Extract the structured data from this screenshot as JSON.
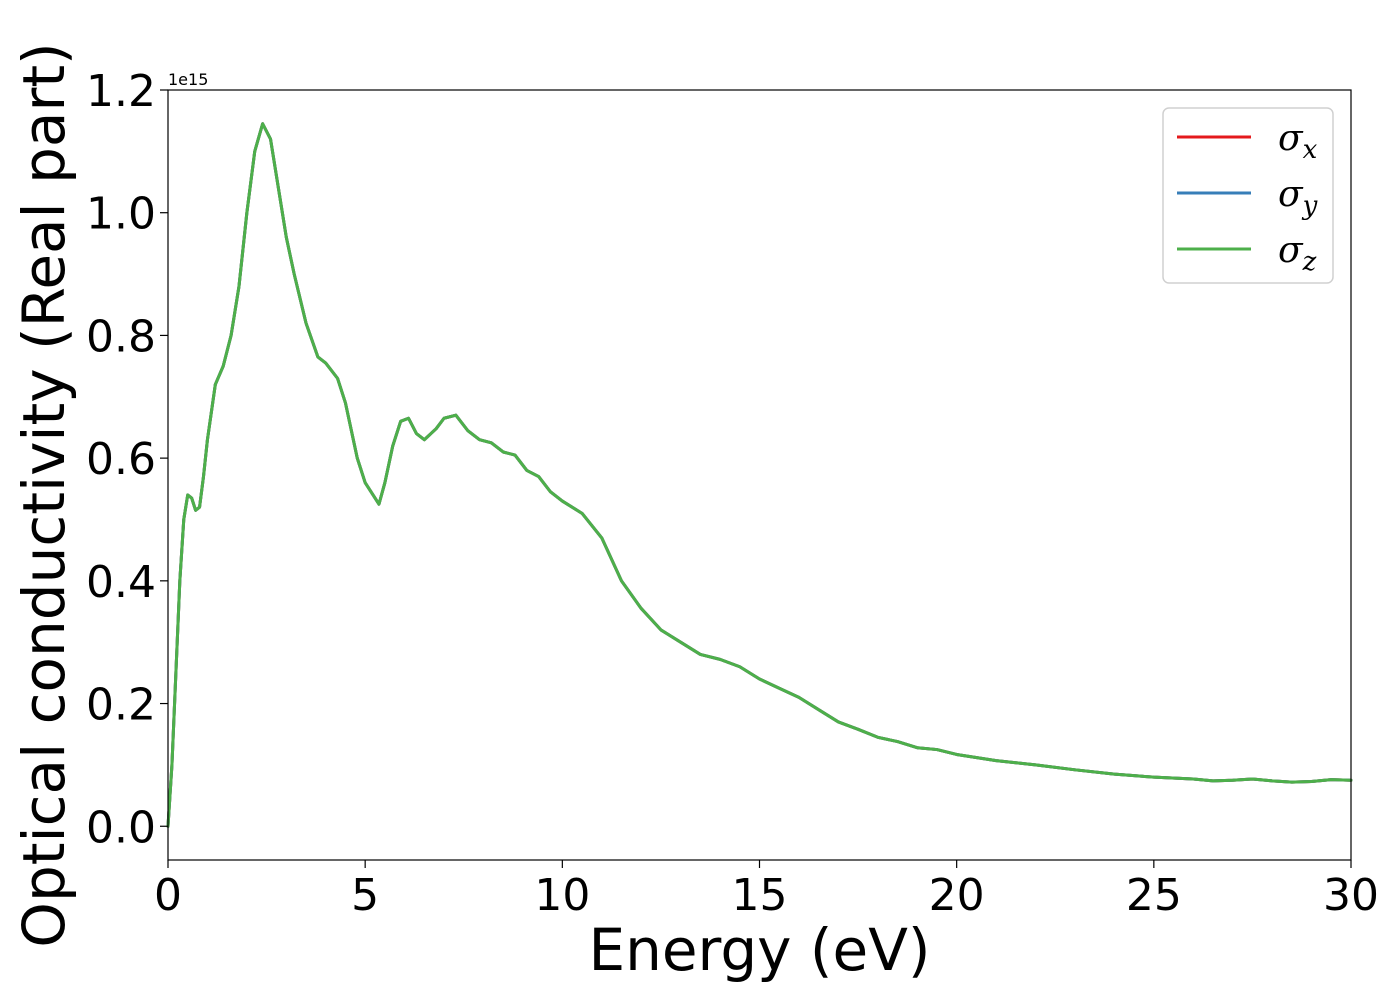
{
  "chart_data": {
    "type": "line",
    "xlabel": "Energy (eV)",
    "ylabel": "Optical conductivity (Real part)",
    "y_offset_text": "1e15",
    "xlim": [
      0,
      30
    ],
    "ylim": [
      -0.055,
      1.2
    ],
    "y_multiplier": 1000000000000000.0,
    "xticks": [
      0,
      5,
      10,
      15,
      20,
      25,
      30
    ],
    "xtick_labels": [
      "0",
      "5",
      "10",
      "15",
      "20",
      "25",
      "30"
    ],
    "yticks": [
      0.0,
      0.2,
      0.4,
      0.6,
      0.8,
      1.0,
      1.2
    ],
    "ytick_labels": [
      "0.0",
      "0.2",
      "0.4",
      "0.6",
      "0.8",
      "1.0",
      "1.2"
    ],
    "grid": false,
    "legend_position": "top-right",
    "x": [
      0,
      0.1,
      0.2,
      0.3,
      0.4,
      0.5,
      0.6,
      0.7,
      0.8,
      0.9,
      1.0,
      1.2,
      1.4,
      1.6,
      1.8,
      2.0,
      2.2,
      2.4,
      2.6,
      2.8,
      3.0,
      3.2,
      3.5,
      3.8,
      4.0,
      4.3,
      4.5,
      4.8,
      5.0,
      5.2,
      5.35,
      5.5,
      5.7,
      5.9,
      6.1,
      6.3,
      6.5,
      6.8,
      7.0,
      7.3,
      7.6,
      7.9,
      8.2,
      8.5,
      8.8,
      9.1,
      9.4,
      9.7,
      10.0,
      10.5,
      11.0,
      11.5,
      12.0,
      12.5,
      13.0,
      13.5,
      14.0,
      14.5,
      15.0,
      15.5,
      16.0,
      16.5,
      17.0,
      17.5,
      18.0,
      18.5,
      19.0,
      19.5,
      20.0,
      21.0,
      22.0,
      23.0,
      24.0,
      25.0,
      26.0,
      26.5,
      27.0,
      27.5,
      28.0,
      28.5,
      29.0,
      29.5,
      30.0
    ],
    "series": [
      {
        "name": "σx",
        "label_base": "σ",
        "label_sub": "x",
        "color": "#e41a1c",
        "values": [
          0.0,
          0.1,
          0.25,
          0.4,
          0.5,
          0.54,
          0.535,
          0.515,
          0.52,
          0.57,
          0.63,
          0.72,
          0.75,
          0.8,
          0.88,
          1.0,
          1.1,
          1.145,
          1.12,
          1.04,
          0.96,
          0.9,
          0.82,
          0.765,
          0.755,
          0.73,
          0.69,
          0.6,
          0.56,
          0.54,
          0.525,
          0.56,
          0.62,
          0.66,
          0.665,
          0.64,
          0.63,
          0.648,
          0.665,
          0.67,
          0.645,
          0.63,
          0.625,
          0.61,
          0.605,
          0.58,
          0.57,
          0.545,
          0.53,
          0.51,
          0.47,
          0.4,
          0.355,
          0.32,
          0.3,
          0.28,
          0.272,
          0.26,
          0.24,
          0.225,
          0.21,
          0.19,
          0.17,
          0.158,
          0.145,
          0.138,
          0.128,
          0.125,
          0.117,
          0.107,
          0.1,
          0.092,
          0.085,
          0.08,
          0.077,
          0.074,
          0.075,
          0.077,
          0.074,
          0.072,
          0.073,
          0.076,
          0.075
        ]
      },
      {
        "name": "σy",
        "label_base": "σ",
        "label_sub": "y",
        "color": "#377eb8",
        "values": [
          0.0,
          0.1,
          0.25,
          0.4,
          0.5,
          0.54,
          0.535,
          0.515,
          0.52,
          0.57,
          0.63,
          0.72,
          0.75,
          0.8,
          0.88,
          1.0,
          1.1,
          1.145,
          1.12,
          1.04,
          0.96,
          0.9,
          0.82,
          0.765,
          0.755,
          0.73,
          0.69,
          0.6,
          0.56,
          0.54,
          0.525,
          0.56,
          0.62,
          0.66,
          0.665,
          0.64,
          0.63,
          0.648,
          0.665,
          0.67,
          0.645,
          0.63,
          0.625,
          0.61,
          0.605,
          0.58,
          0.57,
          0.545,
          0.53,
          0.51,
          0.47,
          0.4,
          0.355,
          0.32,
          0.3,
          0.28,
          0.272,
          0.26,
          0.24,
          0.225,
          0.21,
          0.19,
          0.17,
          0.158,
          0.145,
          0.138,
          0.128,
          0.125,
          0.117,
          0.107,
          0.1,
          0.092,
          0.085,
          0.08,
          0.077,
          0.074,
          0.075,
          0.077,
          0.074,
          0.072,
          0.073,
          0.076,
          0.075
        ]
      },
      {
        "name": "σz",
        "label_base": "σ",
        "label_sub": "z",
        "color": "#4daf4a",
        "values": [
          0.0,
          0.1,
          0.25,
          0.4,
          0.5,
          0.54,
          0.535,
          0.515,
          0.52,
          0.57,
          0.63,
          0.72,
          0.75,
          0.8,
          0.88,
          1.0,
          1.1,
          1.145,
          1.12,
          1.04,
          0.96,
          0.9,
          0.82,
          0.765,
          0.755,
          0.73,
          0.69,
          0.6,
          0.56,
          0.54,
          0.525,
          0.56,
          0.62,
          0.66,
          0.665,
          0.64,
          0.63,
          0.648,
          0.665,
          0.67,
          0.645,
          0.63,
          0.625,
          0.61,
          0.605,
          0.58,
          0.57,
          0.545,
          0.53,
          0.51,
          0.47,
          0.4,
          0.355,
          0.32,
          0.3,
          0.28,
          0.272,
          0.26,
          0.24,
          0.225,
          0.21,
          0.19,
          0.17,
          0.158,
          0.145,
          0.138,
          0.128,
          0.125,
          0.117,
          0.107,
          0.1,
          0.092,
          0.085,
          0.08,
          0.077,
          0.074,
          0.075,
          0.077,
          0.074,
          0.072,
          0.073,
          0.076,
          0.075
        ]
      }
    ]
  }
}
